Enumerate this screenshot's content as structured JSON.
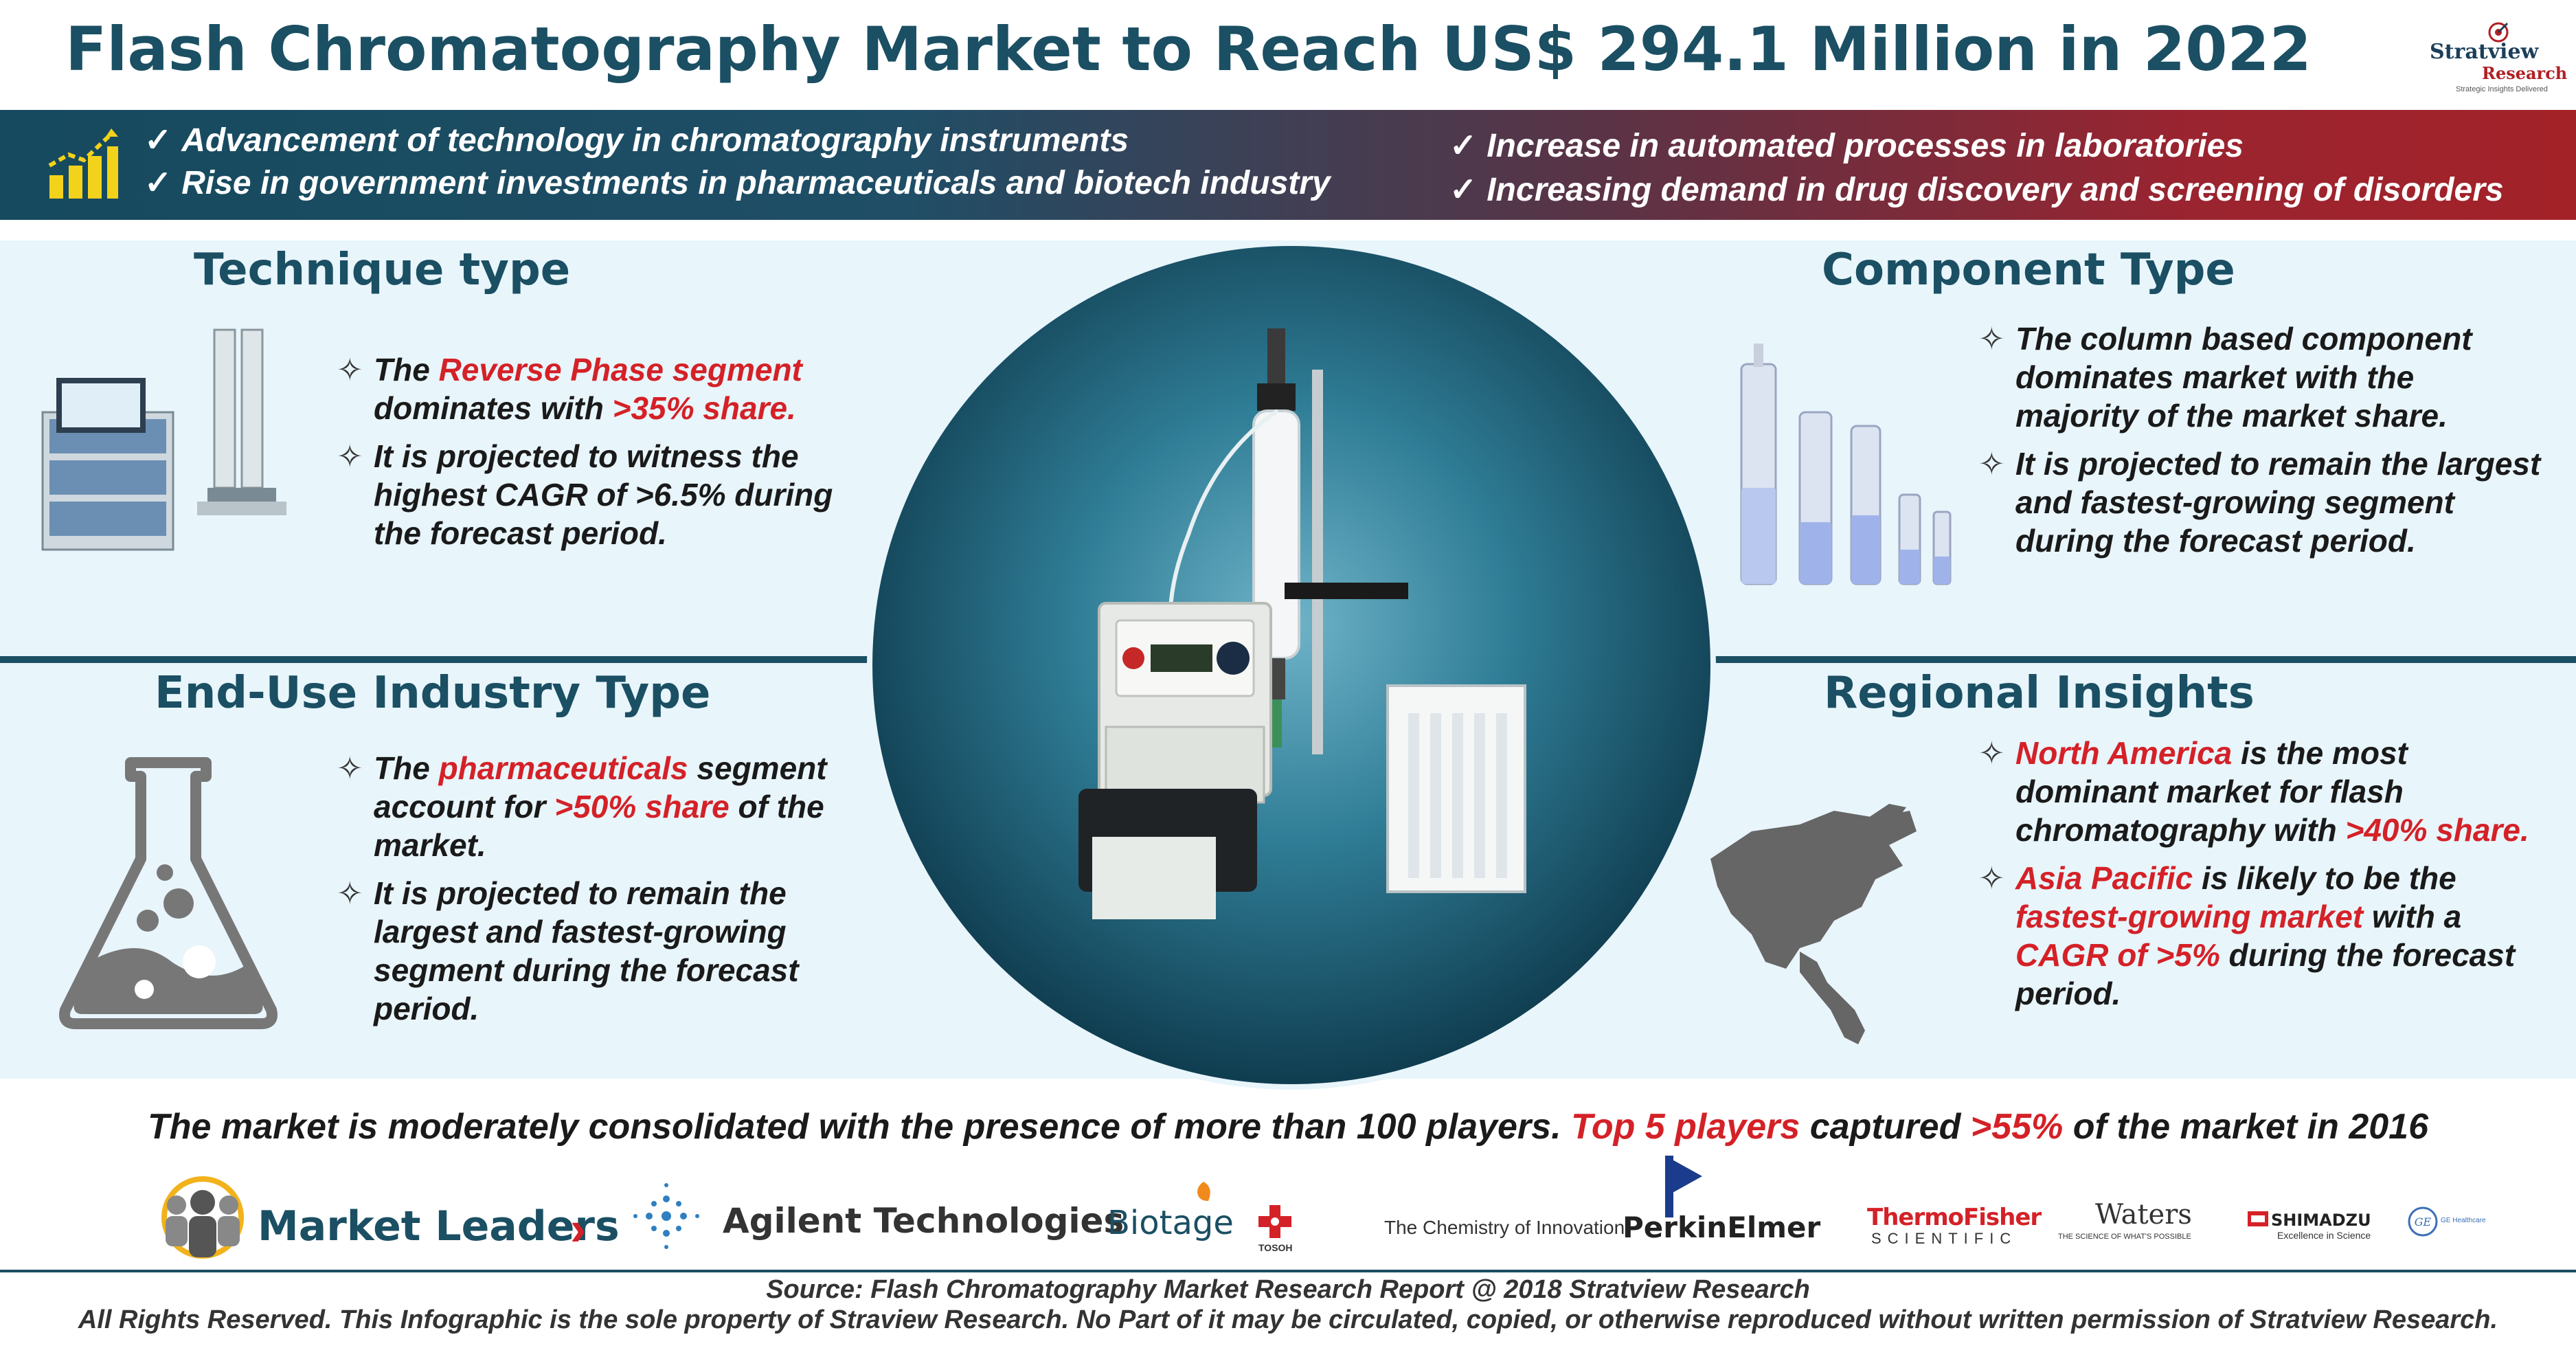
{
  "header": {
    "title": "Flash Chromatography Market to Reach US$ 294.1 Million in 2022",
    "brand_line1": "Stratview",
    "brand_line2": "Research",
    "brand_tagline": "Strategic Insights Delivered"
  },
  "drivers": {
    "left": [
      "Advancement of technology in chromatography instruments",
      "Rise in government investments in pharmaceuticals and biotech industry"
    ],
    "right": [
      "Increase in automated processes in laboratories",
      "Increasing demand in drug discovery and screening of disorders"
    ],
    "tick": "✓"
  },
  "technique": {
    "title": "Technique type",
    "b1_pre": "The ",
    "b1_red": "Reverse Phase segment",
    "b1_mid": " dominates with ",
    "b1_red2": ">35% share.",
    "b2": "It is projected to witness the highest CAGR of >6.5% during the forecast period."
  },
  "component": {
    "title": "Component Type",
    "b1": "The column based component dominates market with the majority of the market share.",
    "b2": "It is projected to remain the largest and fastest-growing segment during the forecast period."
  },
  "enduse": {
    "title": "End-Use Industry Type",
    "b1_pre": "The ",
    "b1_red": "pharmaceuticals",
    "b1_mid": " segment account for ",
    "b1_red2": ">50% share",
    "b1_post": " of the market.",
    "b2": "It is projected to remain the largest and fastest-growing segment during the forecast period."
  },
  "regional": {
    "title": "Regional Insights",
    "b1_red": "North America",
    "b1_mid": " is the most dominant market for flash chromatography with ",
    "b1_red2": ">40% share.",
    "b2_red": "Asia Pacific",
    "b2_mid": " is likely to be the ",
    "b2_red2": "fastest-growing market",
    "b2_mid2": " with a ",
    "b2_red3": "CAGR of >5%",
    "b2_post": " during the forecast period."
  },
  "consolidation": {
    "pre": "The market is moderately consolidated with the presence of more than 100 players. ",
    "red1": "Top 5 players",
    "mid": " captured ",
    "red2": ">55%",
    "post": " of the market in 2016"
  },
  "leaders": {
    "label": "Market Leaders",
    "chevron": "›",
    "logos": {
      "agilent": "Agilent Technologies",
      "biotage": "Biotage",
      "tosoh": "TOSOH",
      "chemistry": "The Chemistry of Innovation",
      "perkin": "PerkinElmer",
      "thermo1": "ThermoFisher",
      "thermo2": "SCIENTIFIC",
      "waters": "Waters",
      "waters_tag": "THE SCIENCE OF WHAT'S POSSIBLE",
      "shimadzu": "SHIMADZU",
      "shimadzu_tag": "Excellence in Science",
      "ge": "GE Healthcare"
    }
  },
  "footer": {
    "source": "Source: Flash Chromatography Market Research Report @ 2018 Stratview Research",
    "rights": "All Rights Reserved. This Infographic is the sole property of Straview Research. No Part of it may be circulated, copied, or otherwise reproduced without written permission of Stratview Research."
  },
  "colors": {
    "primary": "#1b4f63",
    "accent_red": "#d42127",
    "panel_bg": "#e8f5fb"
  }
}
